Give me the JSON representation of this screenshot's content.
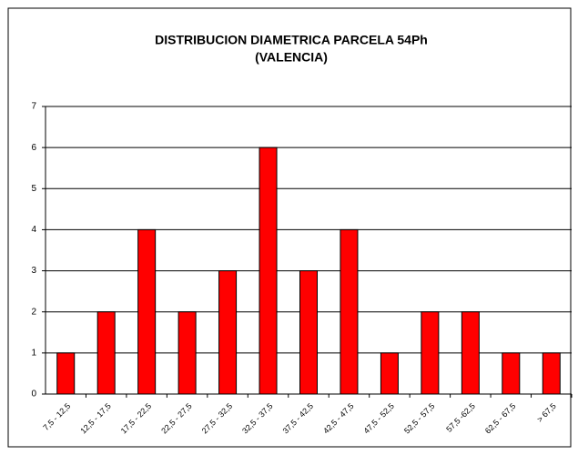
{
  "chart_data": {
    "type": "bar",
    "title": "DISTRIBUCION DIAMETRICA PARCELA 54Ph",
    "subtitle": "(VALENCIA)",
    "categories": [
      "7,5 - 12,5",
      "12,5 - 17,5",
      "17,5 - 22,5",
      "22,5 - 27,5",
      "27,5 - 32,5",
      "32,5 - 37,5",
      "37,5 - 42,5",
      "42,5 - 47,5",
      "47,5 - 52,5",
      "52,5 - 57,5",
      "57,5 -62,5",
      "62,5 - 67,5",
      "> 67,5"
    ],
    "values": [
      1,
      2,
      4,
      2,
      3,
      6,
      3,
      4,
      1,
      2,
      2,
      1,
      1
    ],
    "color": "#ff0000",
    "ylim": [
      0,
      7
    ],
    "yticks": [
      0,
      1,
      2,
      3,
      4,
      5,
      6,
      7
    ],
    "grid": true
  }
}
